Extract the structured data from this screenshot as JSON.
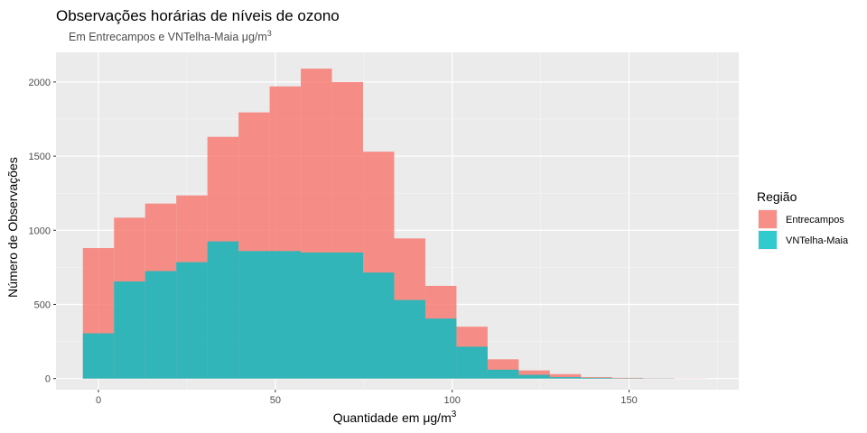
{
  "chart_data": {
    "type": "histogram",
    "title": "Observações horárias de níveis de ozono",
    "subtitle": "Em Entrecampos e VNTelha-Maia μg/m",
    "subtitle_sup": "3",
    "xlabel": "Quantidade em  μg/m",
    "xlabel_sup": "3",
    "ylabel": "Número de Observações",
    "xlim": [
      -12,
      181
    ],
    "ylim": [
      -75,
      2200
    ],
    "xticks": [
      0,
      50,
      100,
      150
    ],
    "yticks": [
      0,
      500,
      1000,
      1500,
      2000
    ],
    "bin_width": 8.8,
    "bin_centers": [
      0,
      8.8,
      17.6,
      26.4,
      35.2,
      44,
      52.8,
      61.6,
      70.4,
      79.2,
      88,
      96.8,
      105.6,
      114.4,
      123.2,
      132,
      140.8,
      149.6,
      158.4,
      167.2
    ],
    "grid": true,
    "legend": {
      "title": "Região",
      "position": "right"
    },
    "series": [
      {
        "name": "Entrecampos",
        "color": "#F8766D",
        "values": [
          880,
          1085,
          1180,
          1235,
          1630,
          1795,
          1970,
          2090,
          2000,
          1530,
          945,
          625,
          350,
          130,
          55,
          30,
          10,
          5,
          2,
          1
        ]
      },
      {
        "name": "VNTelha-Maia",
        "color": "#00BFC4",
        "values": [
          305,
          655,
          725,
          785,
          925,
          860,
          860,
          850,
          850,
          715,
          530,
          405,
          215,
          60,
          25,
          10,
          5,
          2,
          1,
          0
        ]
      }
    ]
  }
}
